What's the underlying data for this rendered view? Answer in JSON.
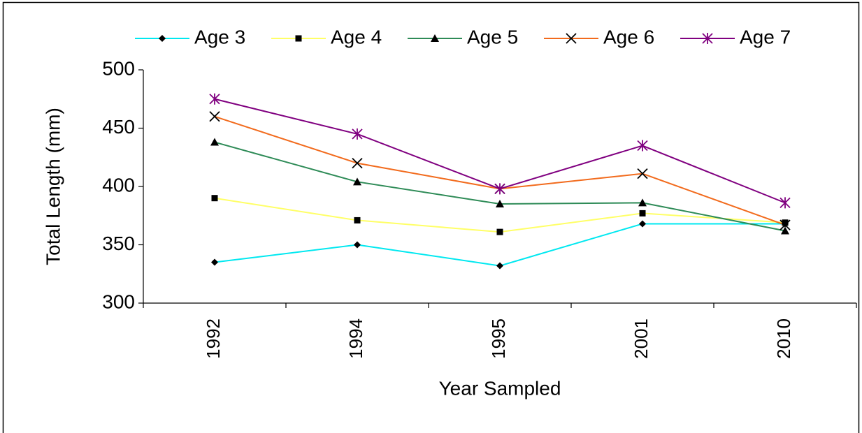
{
  "chart_data": {
    "type": "line",
    "x_label": "Year Sampled",
    "y_label": "Total Length (mm)",
    "categories": [
      "1992",
      "1994",
      "1995",
      "2001",
      "2010"
    ],
    "ylim": [
      300,
      500
    ],
    "yticks": [
      300,
      350,
      400,
      450,
      500
    ],
    "grid": false,
    "legend": "top",
    "series": [
      {
        "name": "Age 3",
        "color": "#00e8f0",
        "marker": "diamond",
        "marker_color": "#000000",
        "values": [
          335,
          350,
          332,
          368,
          368
        ]
      },
      {
        "name": "Age 4",
        "color": "#ffff66",
        "marker": "square",
        "marker_color": "#000000",
        "values": [
          390,
          371,
          361,
          377,
          369
        ]
      },
      {
        "name": "Age 5",
        "color": "#2e8b57",
        "marker": "triangle",
        "marker_color": "#000000",
        "values": [
          438,
          404,
          385,
          386,
          362
        ]
      },
      {
        "name": "Age 6",
        "color": "#f26b1d",
        "marker": "x",
        "marker_color": "#000000",
        "values": [
          460,
          420,
          398,
          411,
          367
        ]
      },
      {
        "name": "Age 7",
        "color": "#800080",
        "marker": "star",
        "marker_color": "#800080",
        "values": [
          475,
          445,
          398,
          435,
          386
        ]
      }
    ]
  }
}
